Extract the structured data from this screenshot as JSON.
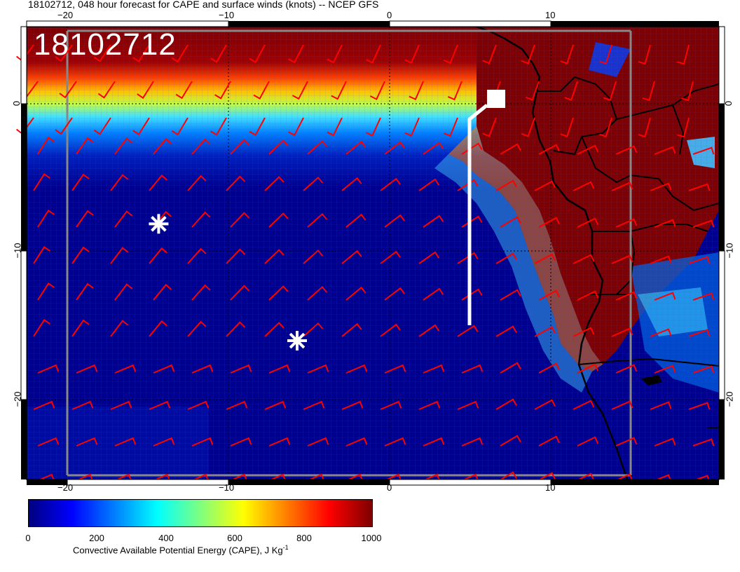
{
  "title": "18102712, 048 hour forecast for CAPE and surface winds (knots) -- NCEP GFS",
  "stamp": "18102712",
  "map": {
    "projection": "lat-lon",
    "lon_range": [
      -22.5,
      20.5
    ],
    "lat_range": [
      -25.5,
      5.5
    ],
    "graticule_spacing_deg": 10,
    "field": "CAPE",
    "wind_barb_color": "#ff0000",
    "land_outline_color": "#000000",
    "markers": [
      {
        "type": "asterisk",
        "lon": -14.3,
        "lat": -8.0,
        "color": "#ffffff"
      },
      {
        "type": "asterisk",
        "lon": -5.7,
        "lat": -16.0,
        "color": "#ffffff"
      }
    ],
    "track_color": "#ffffff"
  },
  "axes": {
    "bottom_ticks": [
      "−20",
      "−10",
      "0",
      "10"
    ],
    "top_ticks": [
      "−20",
      "−10",
      "0",
      "10"
    ],
    "left_ticks": [
      "0",
      "−10",
      "−20"
    ],
    "right_ticks": [
      "0",
      "−10",
      "−20"
    ]
  },
  "colorbar": {
    "label_prefix": "Convective Available Potential Energy (CAPE), J Kg",
    "label_exponent": "-1",
    "ticks": [
      "0",
      "200",
      "400",
      "600",
      "800",
      "1000"
    ],
    "range": [
      0,
      1000
    ],
    "colors": [
      "#00007f",
      "#0000ff",
      "#007fff",
      "#00ffff",
      "#7fff7f",
      "#ffff00",
      "#ff7f00",
      "#ff0000",
      "#7f0000"
    ]
  }
}
